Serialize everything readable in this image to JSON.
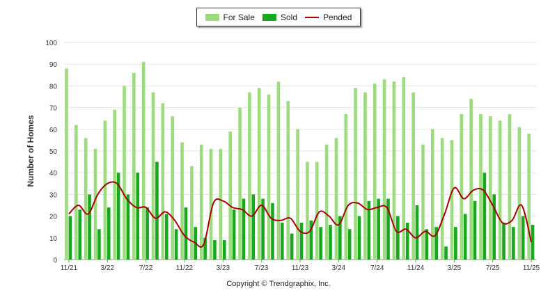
{
  "chart_data": {
    "type": "bar",
    "ylabel": "Number of Homes",
    "ylim": [
      0,
      100
    ],
    "yticks": [
      0,
      10,
      20,
      30,
      40,
      50,
      60,
      70,
      80,
      90,
      100
    ],
    "x_tick_labels": [
      {
        "index": 0,
        "label": "11/21"
      },
      {
        "index": 4,
        "label": "3/22"
      },
      {
        "index": 8,
        "label": "7/22"
      },
      {
        "index": 12,
        "label": "11/22"
      },
      {
        "index": 16,
        "label": "3/23"
      },
      {
        "index": 20,
        "label": "7/23"
      },
      {
        "index": 24,
        "label": "11/23"
      },
      {
        "index": 28,
        "label": "3/24"
      },
      {
        "index": 32,
        "label": "7/24"
      },
      {
        "index": 36,
        "label": "11/24"
      },
      {
        "index": 40,
        "label": "3/25"
      },
      {
        "index": 44,
        "label": "7/25"
      },
      {
        "index": 48,
        "label": "11/25"
      }
    ],
    "series": [
      {
        "name": "For Sale",
        "kind": "bar",
        "color": "#9ddc7e",
        "values": [
          88,
          62,
          56,
          51,
          64,
          69,
          80,
          86,
          91,
          77,
          72,
          66,
          54,
          43,
          53,
          51,
          51,
          59,
          70,
          77,
          79,
          76,
          82,
          73,
          60,
          45,
          45,
          53,
          56,
          67,
          79,
          77,
          81,
          83,
          82,
          84,
          77,
          53,
          60,
          56,
          55,
          67,
          74,
          67,
          66,
          64,
          67,
          61,
          58
        ]
      },
      {
        "name": "Sold",
        "kind": "bar",
        "color": "#17a81e",
        "values": [
          20,
          23,
          30,
          14,
          24,
          40,
          30,
          40,
          24,
          45,
          21,
          14,
          24,
          15,
          10,
          9,
          9,
          23,
          28,
          30,
          28,
          26,
          17,
          12,
          17,
          18,
          15,
          16,
          20,
          14,
          20,
          27,
          28,
          28,
          20,
          17,
          25,
          14,
          15,
          6,
          15,
          21,
          27,
          40,
          30,
          17,
          15,
          20,
          16
        ]
      },
      {
        "name": "Pended",
        "kind": "line",
        "color": "#aa0000",
        "values": [
          21,
          25,
          21,
          30,
          35,
          35,
          28,
          24,
          24,
          19,
          22,
          18,
          11,
          8,
          7,
          26,
          27,
          24,
          23,
          20,
          25,
          19,
          18,
          19,
          13,
          13,
          22,
          20,
          16,
          25,
          26,
          23,
          24,
          24,
          13,
          14,
          10,
          13,
          11,
          21,
          33,
          28,
          32,
          32,
          25,
          17,
          18,
          25,
          8
        ]
      }
    ],
    "legend": {
      "position": "top-center",
      "labels": [
        "For Sale",
        "Sold",
        "Pended"
      ]
    }
  },
  "footer": {
    "copyright": "Copyright © Trendgraphix, Inc."
  }
}
